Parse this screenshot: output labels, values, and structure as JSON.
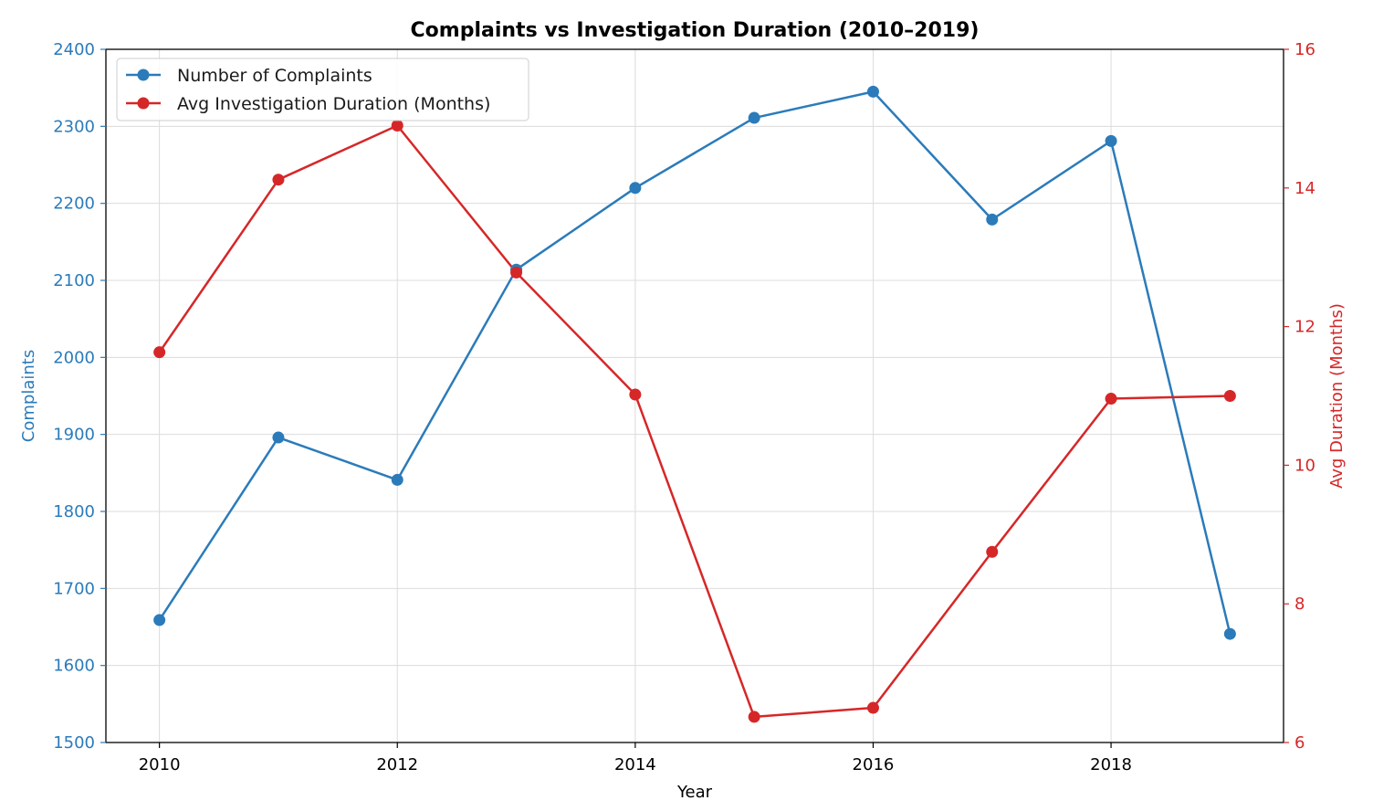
{
  "chart_data": {
    "type": "line",
    "title": "Complaints vs Investigation Duration (2010–2019)",
    "xlabel": "Year",
    "ylabel": "Complaints",
    "ylabel_right": "Avg Duration (Months)",
    "x": [
      2010,
      2011,
      2012,
      2013,
      2014,
      2015,
      2016,
      2017,
      2018,
      2019
    ],
    "xlim": [
      2009.55,
      2019.45
    ],
    "xticks": [
      "2010",
      "2012",
      "2014",
      "2016",
      "2018"
    ],
    "ylim": [
      1500,
      2400
    ],
    "yticks": [
      "1500",
      "1600",
      "1700",
      "1800",
      "1900",
      "2000",
      "2100",
      "2200",
      "2300",
      "2400"
    ],
    "ylim_right": [
      6,
      16
    ],
    "yticks_right": [
      "6",
      "8",
      "10",
      "12",
      "14",
      "16"
    ],
    "grid": true,
    "legend_position": "top-left",
    "series": [
      {
        "name": "Number of Complaints",
        "axis": "left",
        "color": "#2b7bba",
        "values": [
          1659,
          1896,
          1841,
          2114,
          2220,
          2311,
          2345,
          2179,
          2281,
          1641
        ]
      },
      {
        "name": "Avg Investigation Duration (Months)",
        "axis": "right",
        "color": "#d62728",
        "values": [
          11.63,
          14.12,
          14.9,
          12.78,
          11.02,
          6.37,
          6.5,
          8.75,
          10.96,
          11.0
        ]
      }
    ],
    "colors": {
      "left_axis": "#2b7bba",
      "right_axis": "#d62728"
    }
  }
}
